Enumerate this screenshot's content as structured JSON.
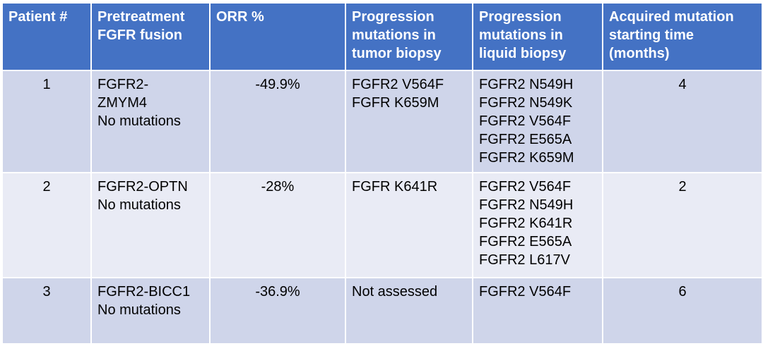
{
  "table": {
    "headers": [
      [
        "Patient #"
      ],
      [
        "Pretreatment",
        "FGFR fusion"
      ],
      [
        "ORR %"
      ],
      [
        "Progression",
        "mutations in",
        "tumor biopsy"
      ],
      [
        "Progression",
        "mutations in",
        "liquid biopsy"
      ],
      [
        "Acquired mutation",
        "starting time",
        "(months)"
      ]
    ],
    "rows": [
      {
        "patient": "1",
        "fusion": [
          "FGFR2-",
          "ZMYM4",
          "No mutations"
        ],
        "orr": "-49.9%",
        "tumor": [
          "FGFR2 V564F",
          "FGFR K659M"
        ],
        "liquid": [
          "FGFR2 N549H",
          "FGFR2 N549K",
          "FGFR2 V564F",
          "FGFR2 E565A",
          "FGFR2 K659M"
        ],
        "months": "4"
      },
      {
        "patient": "2",
        "fusion": [
          "FGFR2-OPTN",
          "No mutations"
        ],
        "orr": "-28%",
        "tumor": [
          "FGFR K641R"
        ],
        "liquid": [
          "FGFR2 V564F",
          "FGFR2 N549H",
          "FGFR2 K641R",
          "FGFR2 E565A",
          "FGFR2 L617V"
        ],
        "months": "2"
      },
      {
        "patient": "3",
        "fusion": [
          "FGFR2-BICC1",
          "No mutations"
        ],
        "orr": "-36.9%",
        "tumor": [
          "Not assessed"
        ],
        "liquid": [
          "FGFR2 V564F"
        ],
        "months": "6"
      }
    ],
    "colors": {
      "header": "#4472c4",
      "row_odd": "#cfd5ea",
      "row_even": "#e9ebf5"
    }
  }
}
